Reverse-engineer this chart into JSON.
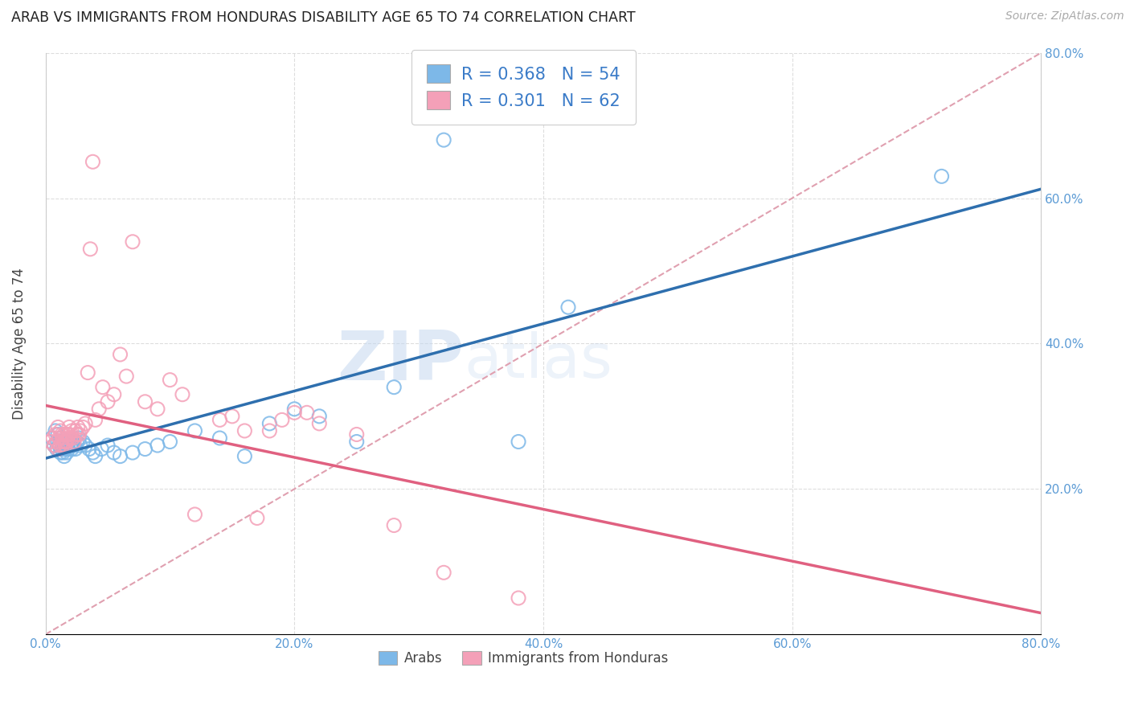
{
  "title": "ARAB VS IMMIGRANTS FROM HONDURAS DISABILITY AGE 65 TO 74 CORRELATION CHART",
  "source": "Source: ZipAtlas.com",
  "ylabel": "Disability Age 65 to 74",
  "xlim": [
    0.0,
    0.8
  ],
  "ylim": [
    0.0,
    0.8
  ],
  "xticks": [
    0.0,
    0.2,
    0.4,
    0.6,
    0.8
  ],
  "yticks_right": [
    0.2,
    0.4,
    0.6,
    0.8
  ],
  "xticklabels": [
    "0.0%",
    "20.0%",
    "40.0%",
    "60.0%",
    "80.0%"
  ],
  "yticklabels_right": [
    "20.0%",
    "40.0%",
    "60.0%",
    "80.0%"
  ],
  "arab_color": "#7DB8E8",
  "honduras_color": "#F4A0B8",
  "arab_line_color": "#2E6FAE",
  "honduras_line_color": "#E06080",
  "diag_line_color": "#E0A0B0",
  "R_arab": 0.368,
  "N_arab": 54,
  "R_honduras": 0.301,
  "N_honduras": 62,
  "legend_label_arab": "Arabs",
  "legend_label_honduras": "Immigrants from Honduras",
  "tick_color": "#5B9BD5",
  "legend_text_color": "#3A7BC8",
  "arab_x": [
    0.005,
    0.007,
    0.008,
    0.009,
    0.01,
    0.01,
    0.011,
    0.012,
    0.012,
    0.013,
    0.013,
    0.014,
    0.014,
    0.015,
    0.015,
    0.016,
    0.016,
    0.017,
    0.018,
    0.018,
    0.019,
    0.02,
    0.021,
    0.022,
    0.023,
    0.024,
    0.025,
    0.027,
    0.028,
    0.03,
    0.032,
    0.035,
    0.038,
    0.04,
    0.045,
    0.05,
    0.055,
    0.06,
    0.07,
    0.08,
    0.09,
    0.1,
    0.12,
    0.14,
    0.16,
    0.18,
    0.2,
    0.22,
    0.25,
    0.28,
    0.32,
    0.38,
    0.42,
    0.72
  ],
  "arab_y": [
    0.27,
    0.26,
    0.28,
    0.255,
    0.265,
    0.275,
    0.26,
    0.25,
    0.27,
    0.255,
    0.265,
    0.25,
    0.26,
    0.255,
    0.245,
    0.255,
    0.265,
    0.25,
    0.26,
    0.255,
    0.265,
    0.26,
    0.255,
    0.265,
    0.26,
    0.255,
    0.265,
    0.27,
    0.26,
    0.265,
    0.26,
    0.255,
    0.25,
    0.245,
    0.255,
    0.26,
    0.25,
    0.245,
    0.25,
    0.255,
    0.26,
    0.265,
    0.28,
    0.27,
    0.245,
    0.29,
    0.31,
    0.3,
    0.265,
    0.34,
    0.68,
    0.265,
    0.45,
    0.63
  ],
  "honduras_x": [
    0.004,
    0.006,
    0.007,
    0.008,
    0.009,
    0.01,
    0.01,
    0.011,
    0.012,
    0.012,
    0.013,
    0.013,
    0.014,
    0.015,
    0.015,
    0.016,
    0.016,
    0.017,
    0.017,
    0.018,
    0.019,
    0.019,
    0.02,
    0.021,
    0.022,
    0.023,
    0.024,
    0.025,
    0.026,
    0.027,
    0.028,
    0.03,
    0.032,
    0.034,
    0.036,
    0.038,
    0.04,
    0.043,
    0.046,
    0.05,
    0.055,
    0.06,
    0.065,
    0.07,
    0.08,
    0.09,
    0.1,
    0.11,
    0.12,
    0.14,
    0.15,
    0.16,
    0.17,
    0.18,
    0.19,
    0.2,
    0.21,
    0.22,
    0.25,
    0.28,
    0.32,
    0.38
  ],
  "honduras_y": [
    0.265,
    0.27,
    0.26,
    0.275,
    0.265,
    0.255,
    0.285,
    0.27,
    0.26,
    0.28,
    0.265,
    0.275,
    0.26,
    0.265,
    0.275,
    0.265,
    0.26,
    0.265,
    0.275,
    0.27,
    0.275,
    0.285,
    0.27,
    0.28,
    0.27,
    0.265,
    0.28,
    0.275,
    0.285,
    0.275,
    0.28,
    0.285,
    0.29,
    0.36,
    0.53,
    0.65,
    0.295,
    0.31,
    0.34,
    0.32,
    0.33,
    0.385,
    0.355,
    0.54,
    0.32,
    0.31,
    0.35,
    0.33,
    0.165,
    0.295,
    0.3,
    0.28,
    0.16,
    0.28,
    0.295,
    0.305,
    0.305,
    0.29,
    0.275,
    0.15,
    0.085,
    0.05
  ]
}
